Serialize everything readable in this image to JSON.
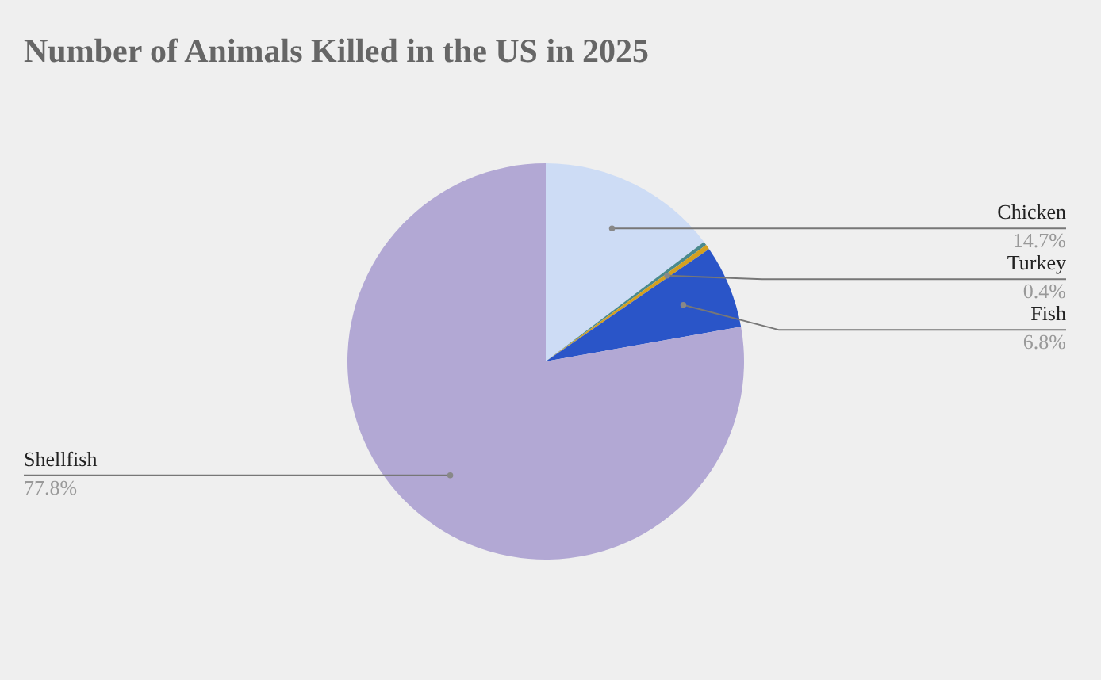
{
  "chart_data": {
    "type": "pie",
    "title": "Number of Animals Killed in the US in 2025",
    "categories": [
      "Chicken",
      null,
      "Turkey",
      "Fish",
      "Shellfish"
    ],
    "values": [
      14.7,
      0.3,
      0.4,
      6.8,
      77.8
    ],
    "value_labels": [
      "14.7%",
      null,
      "0.4%",
      "6.8%",
      "77.8%"
    ],
    "colors": [
      "#cddcf5",
      "#4a8a8e",
      "#d4a020",
      "#2a55c8",
      "#b2a8d4"
    ]
  }
}
